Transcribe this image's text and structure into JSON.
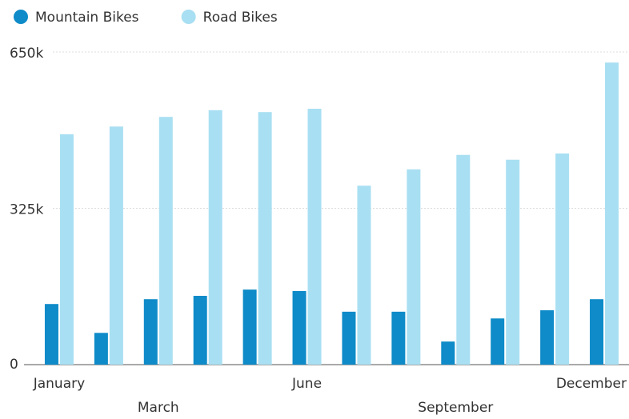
{
  "chart_data": {
    "type": "bar",
    "categories": [
      "January",
      null,
      "March",
      null,
      null,
      "June",
      null,
      null,
      "September",
      null,
      null,
      "December"
    ],
    "series": [
      {
        "name": "Mountain Bikes",
        "color": "#0e8bc8",
        "values": [
          126000,
          66000,
          136000,
          143000,
          156000,
          153000,
          110000,
          110000,
          48000,
          96000,
          113000,
          136000
        ]
      },
      {
        "name": "Road Bikes",
        "color": "#a9dff2",
        "values": [
          479000,
          495000,
          515000,
          529000,
          525000,
          532000,
          372000,
          406000,
          436000,
          426000,
          439000,
          628000
        ]
      }
    ],
    "ylim": [
      0,
      650000
    ],
    "yticks": [
      {
        "value": 0,
        "label": "0"
      },
      {
        "value": 325000,
        "label": "325k"
      },
      {
        "value": 650000,
        "label": "650k"
      }
    ],
    "grid": true,
    "legend": "top"
  }
}
